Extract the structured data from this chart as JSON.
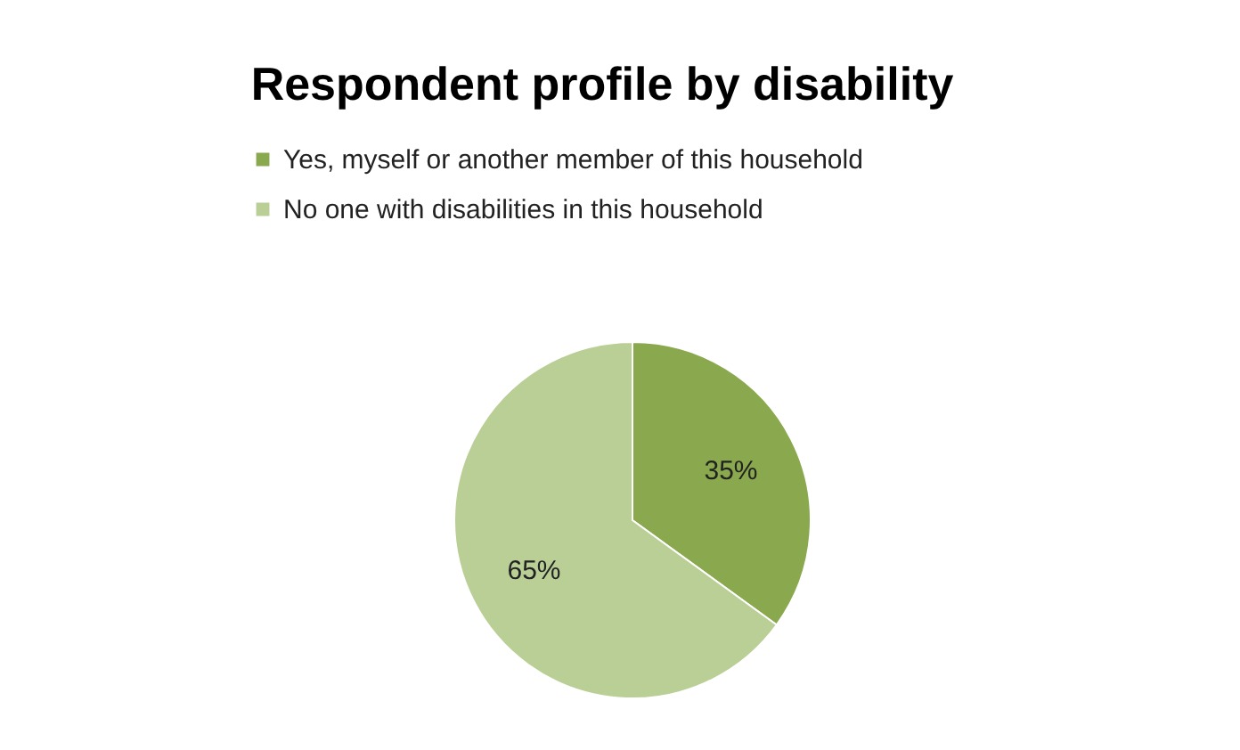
{
  "chart_data": {
    "type": "pie",
    "title": "Respondent profile by disability",
    "categories": [
      "Yes, myself or another member of this household",
      "No one with disabilities in this household"
    ],
    "values": [
      35,
      65
    ],
    "colors": [
      "#8aa84e",
      "#b9cf95"
    ],
    "value_labels": [
      "35%",
      "65%"
    ],
    "legend": "top"
  }
}
